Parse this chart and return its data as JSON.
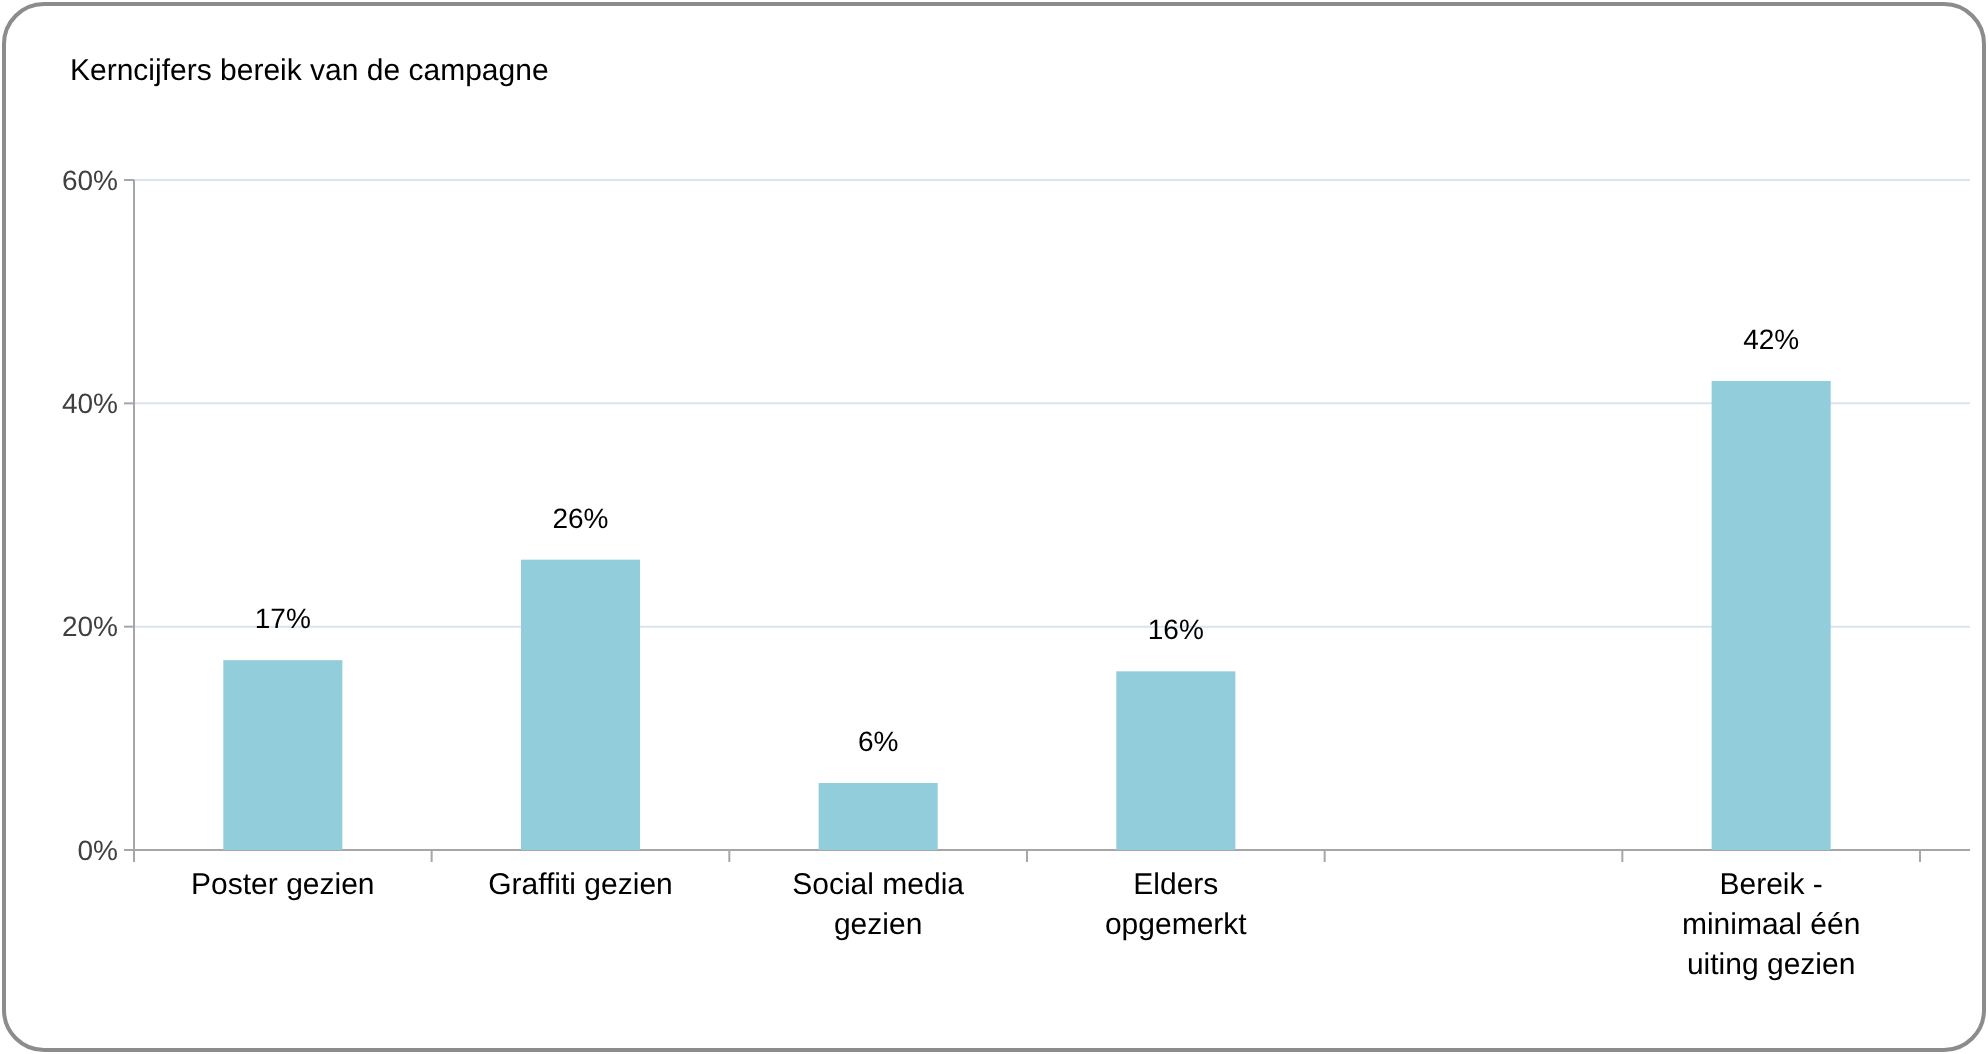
{
  "chart_data": {
    "type": "bar",
    "title": "Kerncijfers bereik van de campagne",
    "categories": [
      "Poster gezien",
      "Graffiti gezien",
      "Social media gezien",
      "Elders opgemerkt",
      null,
      "Bereik - minimaal één uiting gezien"
    ],
    "values": [
      17,
      26,
      6,
      16,
      null,
      42
    ],
    "value_labels": [
      "17%",
      "26%",
      "6%",
      "16%",
      null,
      "42%"
    ],
    "color": "#92cddc",
    "ylim": [
      0,
      60
    ],
    "yticks": [
      {
        "value": 0,
        "label": "0%"
      },
      {
        "value": 20,
        "label": "20%"
      },
      {
        "value": 40,
        "label": "40%"
      },
      {
        "value": 60,
        "label": "60%"
      }
    ],
    "grid": "y"
  }
}
